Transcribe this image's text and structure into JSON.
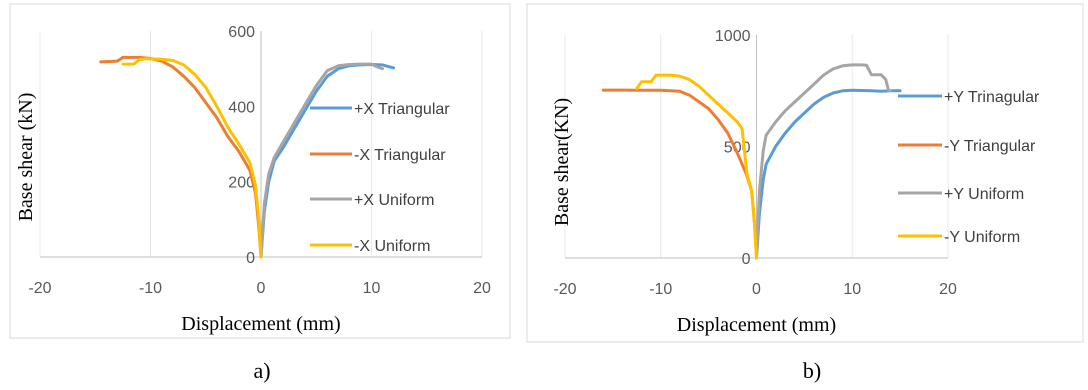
{
  "chart_data": [
    {
      "type": "line",
      "caption": "a)",
      "xlabel": "Displacement (mm)",
      "ylabel": "Base shear (kN)",
      "xlim": [
        -20,
        20
      ],
      "ylim": [
        0,
        600
      ],
      "xticks": [
        -20,
        -10,
        0,
        10,
        20
      ],
      "yticks": [
        0,
        200,
        400,
        600
      ],
      "grid": "vertical",
      "legend": "right",
      "series": [
        {
          "name": "+X Triangular",
          "color": "#5B9BD5",
          "points": [
            [
              0,
              0
            ],
            [
              0.3,
              120
            ],
            [
              0.7,
              200
            ],
            [
              1.2,
              255
            ],
            [
              2,
              290
            ],
            [
              3,
              340
            ],
            [
              4,
              390
            ],
            [
              5,
              440
            ],
            [
              6,
              480
            ],
            [
              7,
              500
            ],
            [
              8,
              508
            ],
            [
              9,
              510
            ],
            [
              10,
              511
            ],
            [
              11,
              510
            ],
            [
              12,
              502
            ]
          ]
        },
        {
          "name": "-X Triangular",
          "color": "#ED7D31",
          "points": [
            [
              0,
              0
            ],
            [
              -0.2,
              80
            ],
            [
              -0.5,
              170
            ],
            [
              -1,
              230
            ],
            [
              -1.5,
              255
            ],
            [
              -2,
              280
            ],
            [
              -3,
              320
            ],
            [
              -4,
              370
            ],
            [
              -5,
              410
            ],
            [
              -6,
              450
            ],
            [
              -7,
              480
            ],
            [
              -8,
              505
            ],
            [
              -9,
              520
            ],
            [
              -10,
              527
            ],
            [
              -11,
              530
            ],
            [
              -12,
              530
            ],
            [
              -12.5,
              530
            ],
            [
              -13,
              520
            ],
            [
              -14.5,
              518
            ]
          ]
        },
        {
          "name": "+X Uniform",
          "color": "#A5A5A5",
          "points": [
            [
              0,
              0
            ],
            [
              0.3,
              140
            ],
            [
              0.7,
              220
            ],
            [
              1.2,
              265
            ],
            [
              2,
              305
            ],
            [
              3,
              355
            ],
            [
              4,
              405
            ],
            [
              5,
              455
            ],
            [
              6,
              495
            ],
            [
              7,
              508
            ],
            [
              8,
              511
            ],
            [
              9,
              512
            ],
            [
              10,
              512
            ],
            [
              10.5,
              505
            ],
            [
              11,
              500
            ]
          ]
        },
        {
          "name": "-X Uniform",
          "color": "#FFC000",
          "points": [
            [
              0,
              0
            ],
            [
              -0.2,
              100
            ],
            [
              -0.5,
              190
            ],
            [
              -1,
              250
            ],
            [
              -2,
              300
            ],
            [
              -3,
              345
            ],
            [
              -4,
              400
            ],
            [
              -5,
              450
            ],
            [
              -6,
              485
            ],
            [
              -7,
              510
            ],
            [
              -8,
              522
            ],
            [
              -9,
              525
            ],
            [
              -10,
              526
            ],
            [
              -10.5,
              526
            ],
            [
              -11,
              524
            ],
            [
              -11.5,
              512
            ],
            [
              -12.5,
              512
            ]
          ]
        }
      ]
    },
    {
      "type": "line",
      "caption": "b)",
      "xlabel": "Displacement (mm)",
      "ylabel": "Base shear(KN)",
      "xlim": [
        -20,
        20
      ],
      "ylim": [
        0,
        1000
      ],
      "xticks": [
        -20,
        -10,
        0,
        10,
        20
      ],
      "yticks": [
        0,
        500,
        1000
      ],
      "grid": "vertical",
      "legend": "right",
      "series": [
        {
          "name": "+Y Trinagular",
          "color": "#5B9BD5",
          "points": [
            [
              0,
              0
            ],
            [
              0.3,
              200
            ],
            [
              0.7,
              350
            ],
            [
              1,
              420
            ],
            [
              2,
              500
            ],
            [
              3,
              560
            ],
            [
              4,
              610
            ],
            [
              5,
              650
            ],
            [
              6,
              690
            ],
            [
              7,
              720
            ],
            [
              8,
              740
            ],
            [
              9,
              750
            ],
            [
              10,
              752
            ],
            [
              12,
              750
            ],
            [
              13,
              748
            ],
            [
              14,
              750
            ],
            [
              15,
              750
            ]
          ]
        },
        {
          "name": "-Y Triangular",
          "color": "#ED7D31",
          "points": [
            [
              0,
              0
            ],
            [
              -0.2,
              150
            ],
            [
              -0.5,
              300
            ],
            [
              -1,
              370
            ],
            [
              -2,
              470
            ],
            [
              -3,
              560
            ],
            [
              -4,
              620
            ],
            [
              -5,
              670
            ],
            [
              -6,
              700
            ],
            [
              -7,
              730
            ],
            [
              -8,
              748
            ],
            [
              -10,
              752
            ],
            [
              -12,
              752
            ],
            [
              -14,
              753
            ],
            [
              -16,
              753
            ]
          ]
        },
        {
          "name": "+Y Uniform",
          "color": "#A5A5A5",
          "points": [
            [
              0,
              0
            ],
            [
              0.3,
              300
            ],
            [
              0.7,
              480
            ],
            [
              1,
              550
            ],
            [
              2,
              610
            ],
            [
              3,
              660
            ],
            [
              4,
              700
            ],
            [
              5,
              740
            ],
            [
              6,
              780
            ],
            [
              7,
              820
            ],
            [
              8,
              848
            ],
            [
              9,
              862
            ],
            [
              10,
              866
            ],
            [
              11,
              866
            ],
            [
              11.5,
              864
            ],
            [
              12,
              822
            ],
            [
              12.5,
              822
            ],
            [
              13,
              822
            ],
            [
              13.5,
              800
            ],
            [
              13.8,
              750
            ],
            [
              14,
              750
            ]
          ]
        },
        {
          "name": "-Y Uniform",
          "color": "#FFC000",
          "points": [
            [
              0,
              0
            ],
            [
              -0.2,
              150
            ],
            [
              -0.5,
              300
            ],
            [
              -1,
              380
            ],
            [
              -1.5,
              580
            ],
            [
              -2,
              610
            ],
            [
              -3,
              650
            ],
            [
              -4,
              690
            ],
            [
              -5,
              730
            ],
            [
              -6,
              770
            ],
            [
              -7,
              800
            ],
            [
              -8,
              815
            ],
            [
              -9,
              820
            ],
            [
              -10,
              820
            ],
            [
              -10.5,
              820
            ],
            [
              -11,
              790
            ],
            [
              -12,
              790
            ],
            [
              -12.5,
              760
            ]
          ]
        }
      ]
    }
  ]
}
